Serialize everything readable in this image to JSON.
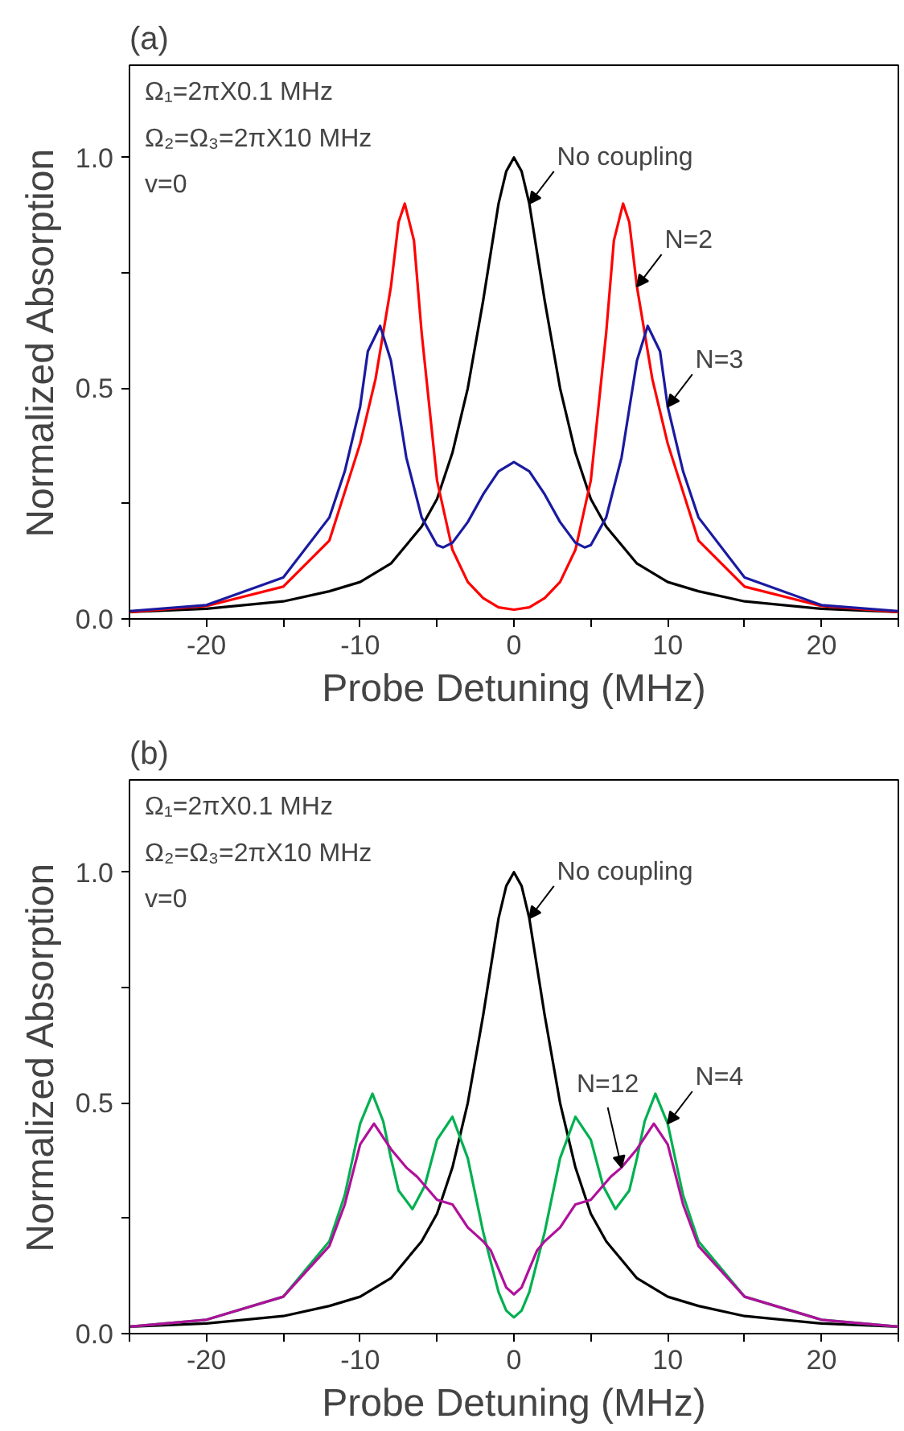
{
  "chart_data": [
    {
      "type": "line",
      "title": "(a)",
      "xlabel": "Probe Detuning (MHz)",
      "ylabel": "Normalized Absorption",
      "xlim": [
        -25,
        25
      ],
      "ylim": [
        0,
        1.2
      ],
      "xticks": [
        {
          "value": -25,
          "label": null
        },
        -20,
        {
          "value": -15,
          "label": null
        },
        -10,
        {
          "value": -5,
          "label": null
        },
        0,
        {
          "value": 5,
          "label": null
        },
        10,
        {
          "value": 15,
          "label": null
        },
        20,
        {
          "value": 25,
          "label": null
        }
      ],
      "yticks": [
        {
          "value": 0,
          "label": "0.0"
        },
        {
          "value": 0.25,
          "label": null
        },
        0.5,
        {
          "value": 0.75,
          "label": null
        },
        {
          "value": 1,
          "label": "1.0"
        }
      ],
      "grid": false,
      "series": [
        {
          "color": "#000000",
          "x": [
            -25,
            -20,
            -15,
            -12,
            -10,
            -8,
            -6,
            -5,
            -4,
            -3,
            -2,
            -1,
            -0.5,
            0,
            0.5,
            1,
            2,
            3,
            4,
            5,
            6,
            8,
            10,
            12,
            15,
            20,
            25
          ],
          "values": [
            0.015,
            0.022,
            0.038,
            0.06,
            0.08,
            0.12,
            0.2,
            0.26,
            0.36,
            0.5,
            0.69,
            0.9,
            0.97,
            1.0,
            0.97,
            0.9,
            0.69,
            0.5,
            0.36,
            0.26,
            0.2,
            0.12,
            0.08,
            0.06,
            0.038,
            0.022,
            0.015
          ]
        },
        {
          "color": "#ff0000",
          "x": [
            -25,
            -20,
            -15,
            -12,
            -10,
            -9,
            -8,
            -7.5,
            -7.1,
            -6.5,
            -6,
            -5,
            -4,
            -3,
            -2,
            -1,
            0,
            1,
            2,
            3,
            4,
            5,
            6,
            6.5,
            7.1,
            7.5,
            8,
            9,
            10,
            12,
            15,
            20,
            25
          ],
          "values": [
            0.015,
            0.028,
            0.07,
            0.17,
            0.38,
            0.52,
            0.72,
            0.86,
            0.9,
            0.82,
            0.62,
            0.3,
            0.15,
            0.08,
            0.045,
            0.025,
            0.02,
            0.025,
            0.045,
            0.08,
            0.15,
            0.3,
            0.62,
            0.82,
            0.9,
            0.86,
            0.72,
            0.52,
            0.38,
            0.17,
            0.07,
            0.028,
            0.015
          ]
        },
        {
          "color": "#1a1aa0",
          "x": [
            -25,
            -20,
            -15,
            -12,
            -11,
            -10,
            -9.5,
            -8.7,
            -8,
            -7,
            -6,
            -5,
            -4.6,
            -4,
            -3,
            -2,
            -1,
            0,
            1,
            2,
            3,
            4,
            4.6,
            5,
            6,
            7,
            8,
            8.7,
            9.5,
            10,
            11,
            12,
            15,
            20,
            25
          ],
          "values": [
            0.017,
            0.03,
            0.09,
            0.22,
            0.32,
            0.46,
            0.58,
            0.635,
            0.56,
            0.35,
            0.22,
            0.16,
            0.155,
            0.165,
            0.21,
            0.27,
            0.32,
            0.34,
            0.32,
            0.27,
            0.21,
            0.165,
            0.155,
            0.16,
            0.22,
            0.35,
            0.56,
            0.635,
            0.58,
            0.46,
            0.32,
            0.22,
            0.09,
            0.03,
            0.017
          ]
        }
      ],
      "annotations": [
        "Ω₁=2πX0.1 MHz",
        "Ω₂=Ω₃=2πX10 MHz",
        "v=0",
        {
          "text": "No coupling",
          "x": 1,
          "y": 0.9
        },
        {
          "text": "N=2",
          "x": 8,
          "y": 0.72
        },
        {
          "text": "N=3",
          "x": 10,
          "y": 0.46
        }
      ]
    },
    {
      "type": "line",
      "title": "(b)",
      "xlabel": "Probe Detuning (MHz)",
      "ylabel": "Normalized Absorption",
      "xlim": [
        -25,
        25
      ],
      "ylim": [
        0,
        1.2
      ],
      "xticks": [
        {
          "value": -25,
          "label": null
        },
        -20,
        {
          "value": -15,
          "label": null
        },
        -10,
        {
          "value": -5,
          "label": null
        },
        0,
        {
          "value": 5,
          "label": null
        },
        10,
        {
          "value": 15,
          "label": null
        },
        20,
        {
          "value": 25,
          "label": null
        }
      ],
      "yticks": [
        {
          "value": 0,
          "label": "0.0"
        },
        {
          "value": 0.25,
          "label": null
        },
        0.5,
        {
          "value": 0.75,
          "label": null
        },
        {
          "value": 1,
          "label": "1.0"
        }
      ],
      "grid": false,
      "series": [
        {
          "color": "#000000",
          "x": [
            -25,
            -20,
            -15,
            -12,
            -10,
            -8,
            -6,
            -5,
            -4,
            -3,
            -2,
            -1,
            -0.5,
            0,
            0.5,
            1,
            2,
            3,
            4,
            5,
            6,
            8,
            10,
            12,
            15,
            20,
            25
          ],
          "values": [
            0.015,
            0.022,
            0.038,
            0.06,
            0.08,
            0.12,
            0.2,
            0.26,
            0.36,
            0.5,
            0.69,
            0.9,
            0.97,
            1.0,
            0.97,
            0.9,
            0.69,
            0.5,
            0.36,
            0.26,
            0.2,
            0.12,
            0.08,
            0.06,
            0.038,
            0.022,
            0.015
          ]
        },
        {
          "color": "#00b050",
          "x": [
            -25,
            -20,
            -15,
            -12,
            -11,
            -10,
            -9.2,
            -8.5,
            -8,
            -7.5,
            -6.6,
            -5.8,
            -5,
            -4,
            -3,
            -2,
            -1,
            -0.5,
            0,
            0.5,
            1,
            2,
            3,
            4,
            5,
            5.8,
            6.6,
            7.5,
            8,
            8.5,
            9.2,
            10,
            11,
            12,
            15,
            20,
            25
          ],
          "values": [
            0.015,
            0.03,
            0.08,
            0.2,
            0.3,
            0.455,
            0.52,
            0.46,
            0.38,
            0.31,
            0.27,
            0.32,
            0.42,
            0.47,
            0.38,
            0.22,
            0.09,
            0.05,
            0.035,
            0.05,
            0.09,
            0.22,
            0.38,
            0.47,
            0.42,
            0.32,
            0.27,
            0.31,
            0.38,
            0.46,
            0.52,
            0.455,
            0.3,
            0.2,
            0.08,
            0.03,
            0.015
          ]
        },
        {
          "color": "#b0109a",
          "x": [
            -25,
            -20,
            -15,
            -12,
            -11,
            -10,
            -9.1,
            -8,
            -7,
            -6.3,
            -5,
            -4,
            -3,
            -2,
            -1.5,
            -1,
            -0.5,
            0,
            0.5,
            1,
            1.5,
            2,
            3,
            4,
            5,
            6.3,
            7,
            8,
            9.1,
            10,
            11,
            12,
            15,
            20,
            25
          ],
          "values": [
            0.015,
            0.03,
            0.08,
            0.19,
            0.28,
            0.41,
            0.455,
            0.4,
            0.36,
            0.34,
            0.29,
            0.28,
            0.23,
            0.2,
            0.18,
            0.14,
            0.1,
            0.085,
            0.1,
            0.14,
            0.18,
            0.2,
            0.23,
            0.28,
            0.29,
            0.34,
            0.36,
            0.4,
            0.455,
            0.41,
            0.28,
            0.19,
            0.08,
            0.03,
            0.015
          ]
        }
      ],
      "annotations": [
        "Ω₁=2πX0.1 MHz",
        "Ω₂=Ω₃=2πX10 MHz",
        "v=0",
        {
          "text": "No coupling",
          "x": 1,
          "y": 0.9
        },
        {
          "text": "N=12",
          "x": 7,
          "y": 0.36
        },
        {
          "text": "N=4",
          "x": 10,
          "y": 0.455
        }
      ]
    }
  ]
}
